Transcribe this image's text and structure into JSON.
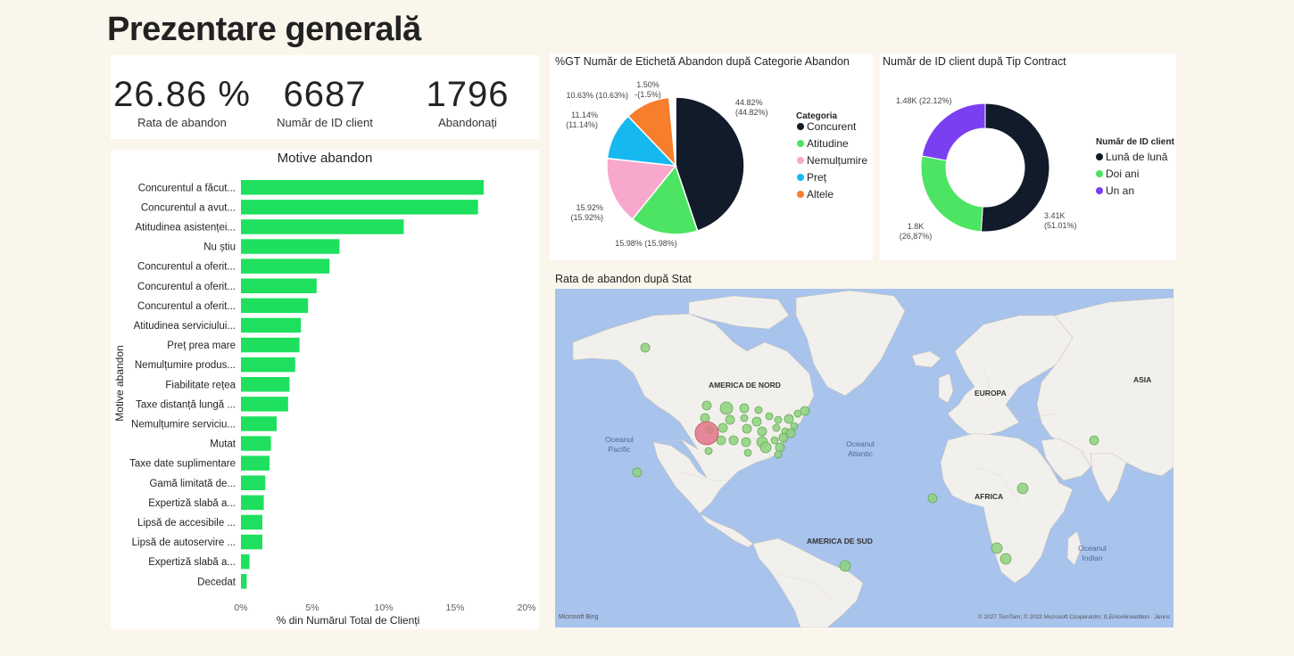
{
  "page": {
    "title": "Prezentare generală"
  },
  "kpis": [
    {
      "value": "26.86 %",
      "label": "Rata de abandon"
    },
    {
      "value": "6687",
      "label": "Număr de ID client"
    },
    {
      "value": "1796",
      "label": "Abandonați"
    }
  ],
  "colors": {
    "bar": "#1ee05e",
    "concurent": "#111b2a",
    "atitudine": "#4ce462",
    "nemultumire": "#f8a8cc",
    "pret": "#15b9ef",
    "altele": "#f77e2c",
    "luna": "#111b2a",
    "doi_ani": "#4ce462",
    "un_an": "#7b3ff2",
    "map_water": "#a8c3ec",
    "map_land": "#f2f0ec",
    "bubble": "#8dd27e",
    "bubble_big": "#e2768a"
  },
  "chart_data": [
    {
      "type": "bar",
      "orientation": "horizontal",
      "title": "Motive abandon",
      "xlabel": "% din Numărul Total de Clienți",
      "ylabel": "Motive abandon",
      "xlim": [
        0,
        20
      ],
      "xticks": [
        "0%",
        "5%",
        "10%",
        "15%",
        "20%"
      ],
      "categories": [
        "Concurentul a făcut...",
        "Concurentul a avut...",
        "Atitudinea asistenței...",
        "Nu știu",
        "Concurentul a oferit...",
        "Concurentul a oferit...",
        "Concurentul a oferit...",
        "Atitudinea serviciului...",
        "Preț prea mare",
        "Nemulțumire produs...",
        "Fiabilitate rețea",
        "Taxe distanță lungă ...",
        "Nemulțumire serviciu...",
        "Mutat",
        "Taxe date suplimentare",
        "Gamă limitată de...",
        "Expertiză slabă a...",
        "Lipsă de accesibile ...",
        "Lipsă de autoservire ...",
        "Expertiză slabă a...",
        "Decedat"
      ],
      "values": [
        17.0,
        16.6,
        11.4,
        6.9,
        6.2,
        5.3,
        4.7,
        4.2,
        4.1,
        3.8,
        3.4,
        3.3,
        2.5,
        2.1,
        2.0,
        1.7,
        1.6,
        1.5,
        1.5,
        0.6,
        0.4
      ]
    },
    {
      "type": "pie",
      "title": "%GT Număr de Etichetă Abandon după Categorie Abandon",
      "legend_title": "Categoria",
      "legend_position": "right",
      "slices": [
        {
          "name": "Concurent",
          "value": 44.82,
          "label": "44.82%",
          "sublabel": "(44.82%)"
        },
        {
          "name": "Atitudine",
          "value": 15.98,
          "label": "15.98% (15.98%)",
          "sublabel": ""
        },
        {
          "name": "Nemulțumire",
          "value": 15.92,
          "label": "15.92%",
          "sublabel": "(15.92%)"
        },
        {
          "name": "Preț",
          "value": 11.14,
          "label": "11.14%",
          "sublabel": "(11.14%)"
        },
        {
          "name": "Altele",
          "value": 10.63,
          "label": "10.63% (10.63%)",
          "sublabel": ""
        },
        {
          "name": "",
          "value": 1.5,
          "label": "1.50%",
          "sublabel": "-(1.5%)"
        }
      ]
    },
    {
      "type": "pie",
      "variant": "donut",
      "title": "Număr de ID client după Tip Contract",
      "legend_title": "Număr de ID client",
      "legend_position": "right",
      "slices": [
        {
          "name": "Lună de lună",
          "value": 51.01,
          "label": "3.41K",
          "sublabel": "(51.01%)"
        },
        {
          "name": "Doi ani",
          "value": 26.87,
          "label": "1.8K",
          "sublabel": "(26,87%)"
        },
        {
          "name": "Un an",
          "value": 22.12,
          "label": "1.48K (22.12%)",
          "sublabel": ""
        }
      ]
    }
  ],
  "map": {
    "title": "Rata de abandon după Stat",
    "labels": {
      "na": "AMERICA DE NORD",
      "eu": "EUROPA",
      "as": "ASIA",
      "af": "AFRICA",
      "sa": "AMERICA DE SUD",
      "pac1": "Oceanul",
      "pac2": "Pacific",
      "atl1": "Oceanul",
      "atl2": "Atlantic",
      "ind1": "Oceanul",
      "ind2": "Indian"
    },
    "attribution": "© 2027 TomTam; © 2022 Mıcrosoft Ccoperatılm; ß,Einon6neetblon · Jenns",
    "logo": "Microsoft Bing"
  }
}
